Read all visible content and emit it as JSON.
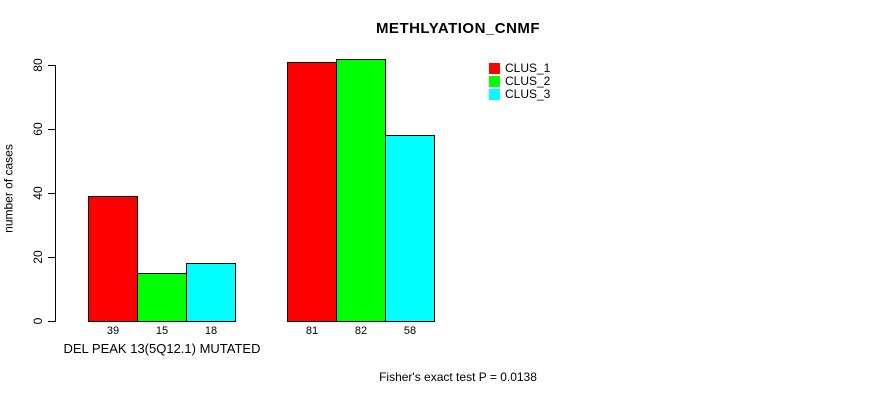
{
  "chart_data": {
    "type": "bar",
    "title": "METHLYATION_CNMF",
    "xlabel": "",
    "ylabel": "number of cases",
    "ylim": [
      0,
      80
    ],
    "yticks": [
      0,
      20,
      40,
      60,
      80
    ],
    "grid": false,
    "categories": [
      "DEL PEAK 13(5Q12.1) MUTATED",
      ""
    ],
    "series": [
      {
        "name": "CLUS_1",
        "color": "#ff0000",
        "values": [
          39,
          81
        ]
      },
      {
        "name": "CLUS_2",
        "color": "#00ff00",
        "values": [
          15,
          82
        ]
      },
      {
        "name": "CLUS_3",
        "color": "#00ffff",
        "values": [
          18,
          58
        ]
      }
    ],
    "bar_value_labels": [
      [
        39,
        15,
        18
      ],
      [
        81,
        82,
        58
      ]
    ],
    "legend": {
      "position": "top-right",
      "entries": [
        "CLUS_1",
        "CLUS_2",
        "CLUS_3"
      ]
    },
    "annotation": "Fisher's exact test P = 0.0138"
  }
}
